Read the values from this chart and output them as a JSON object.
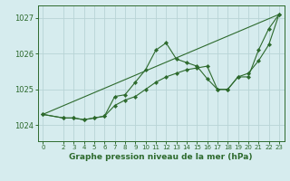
{
  "background_color": "#d6ecee",
  "grid_color": "#b8d4d6",
  "line_color": "#2d6a2d",
  "marker_color": "#2d6a2d",
  "title": "Graphe pression niveau de la mer (hPa)",
  "ylim": [
    1023.55,
    1027.35
  ],
  "xlim": [
    -0.5,
    23.5
  ],
  "yticks": [
    1024,
    1025,
    1026,
    1027
  ],
  "xticks": [
    0,
    2,
    3,
    4,
    5,
    6,
    7,
    8,
    9,
    10,
    11,
    12,
    13,
    14,
    15,
    16,
    17,
    18,
    19,
    20,
    21,
    22,
    23
  ],
  "series": [
    {
      "x": [
        0,
        2,
        3,
        4,
        5,
        6,
        7,
        8,
        9,
        10,
        11,
        12,
        13,
        14,
        15,
        16,
        17,
        18,
        19,
        20,
        21,
        22,
        23
      ],
      "y": [
        1024.3,
        1024.2,
        1024.2,
        1024.15,
        1024.2,
        1024.25,
        1024.8,
        1024.85,
        1025.2,
        1025.55,
        1026.1,
        1026.3,
        1025.85,
        1025.75,
        1025.65,
        1025.3,
        1025.0,
        1025.0,
        1025.35,
        1025.35,
        1026.1,
        1026.7,
        1027.1
      ]
    },
    {
      "x": [
        0,
        2,
        3,
        4,
        5,
        6,
        7,
        8,
        9,
        10,
        11,
        12,
        13,
        14,
        15,
        16,
        17,
        18,
        19,
        20,
        21,
        22,
        23
      ],
      "y": [
        1024.3,
        1024.2,
        1024.2,
        1024.15,
        1024.2,
        1024.25,
        1024.55,
        1024.7,
        1024.8,
        1025.0,
        1025.2,
        1025.35,
        1025.45,
        1025.55,
        1025.6,
        1025.65,
        1025.0,
        1025.0,
        1025.35,
        1025.45,
        1025.8,
        1026.25,
        1027.1
      ]
    },
    {
      "x": [
        0,
        23
      ],
      "y": [
        1024.3,
        1027.1
      ]
    }
  ]
}
